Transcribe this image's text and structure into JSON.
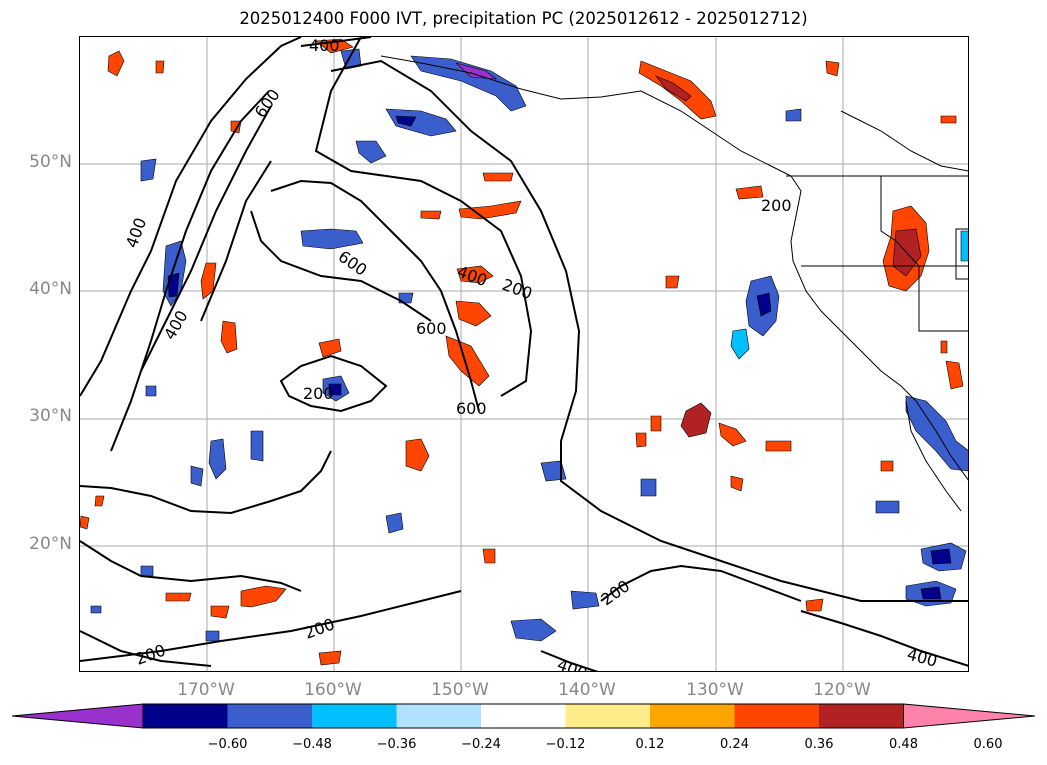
{
  "title": "2025012400 F000 IVT, precipitation PC (2025012612 - 2025012712)",
  "map": {
    "lat_labels": [
      "50°N",
      "40°N",
      "30°N",
      "20°N"
    ],
    "lon_labels": [
      "170°W",
      "160°W",
      "150°W",
      "140°W",
      "130°W",
      "120°W"
    ],
    "contour_labels": [
      "400",
      "600",
      "200",
      "400",
      "600",
      "400",
      "200",
      "600",
      "400",
      "600",
      "200",
      "200",
      "200",
      "400",
      "400",
      "200"
    ]
  },
  "colorbar": {
    "tick_labels": [
      "−0.60",
      "−0.48",
      "−0.36",
      "−0.24",
      "−0.12",
      "0.12",
      "0.24",
      "0.36",
      "0.48",
      "0.60"
    ],
    "colors": [
      "#9932cc",
      "#00008b",
      "#3a5fcd",
      "#00bfff",
      "#b0e2ff",
      "#ffffff",
      "#ffec8b",
      "#ffa500",
      "#ff4500",
      "#b22222",
      "#ff82ab"
    ]
  }
}
